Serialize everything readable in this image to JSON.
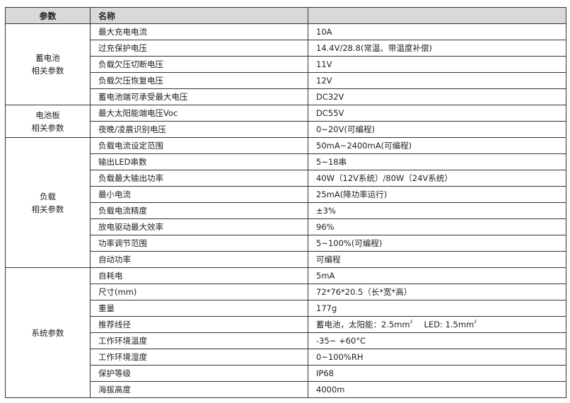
{
  "header": {
    "col1": "参数",
    "col2": "名称",
    "col3": ""
  },
  "groups": [
    {
      "label_line1": "蓄电池",
      "label_line2": "相关参数",
      "rows": [
        {
          "name": "最大充电电流",
          "value": "10A"
        },
        {
          "name": "过充保护电压",
          "value": "14.4V/28.8(常温、带温度补偿)"
        },
        {
          "name": "负载欠压切断电压",
          "value": "11V"
        },
        {
          "name": "负载欠压恢复电压",
          "value": "12V"
        },
        {
          "name": "蓄电池端可承受最大电压",
          "value": "DC32V"
        }
      ]
    },
    {
      "label_line1": "电池板",
      "label_line2": "相关参数",
      "rows": [
        {
          "name": "最大太阳能端电压Voc",
          "value": "DC55V"
        },
        {
          "name": "夜晚/凌晨识别电压",
          "value": "0~20V(可编程)"
        }
      ]
    },
    {
      "label_line1": "负载",
      "label_line2": "相关参数",
      "rows": [
        {
          "name": "负载电流设定范围",
          "value": "50mA~2400mA(可编程)"
        },
        {
          "name": "输出LED串数",
          "value": "5~18串"
        },
        {
          "name": "负载最大输出功率",
          "value": "40W（12V系统）/80W（24V系统）"
        },
        {
          "name": "最小电流",
          "value": "25mA(降功率运行)"
        },
        {
          "name": "负载电流精度",
          "value": "±3%"
        },
        {
          "name": "放电驱动最大效率",
          "value": "96%"
        },
        {
          "name": "功率调节范围",
          "value": "5~100%(可编程)"
        },
        {
          "name": "自动功率",
          "value": "可编程"
        }
      ]
    },
    {
      "label_line1": "系统参数",
      "label_line2": "",
      "rows": [
        {
          "name": "自耗电",
          "value": "5mA"
        },
        {
          "name": "尺寸(mm)",
          "value": "72*76*20.5（长*宽*高）"
        },
        {
          "name": "重量",
          "value": "177g"
        },
        {
          "name": "推荐线径",
          "value_a": "蓄电池，太阳能：2.5mm",
          "sup_a": "2",
          "value_b": "LED: 1.5mm",
          "sup_b": "2"
        },
        {
          "name": "工作环境温度",
          "value": "-35~ +60°C"
        },
        {
          "name": "工作环境湿度",
          "value": "0~100%RH"
        },
        {
          "name": "保护等级",
          "value": "IP68"
        },
        {
          "name": "海拔高度",
          "value": "4000m"
        }
      ]
    }
  ]
}
